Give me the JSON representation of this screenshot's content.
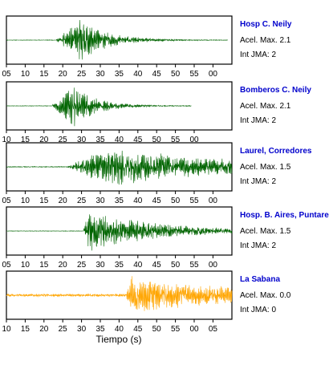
{
  "chart_data": {
    "type": "line",
    "xlabel": "Tiempo (s)",
    "panels": [
      {
        "station": "Hosp C. Neily",
        "accel": "Acel. Max. 2.1",
        "jma": "Int JMA: 2",
        "color": "#006400",
        "xticks": [
          "05",
          "10",
          "15",
          "20",
          "25",
          "30",
          "35",
          "40",
          "45",
          "50",
          "55",
          "00"
        ],
        "onset": 0.22,
        "peak": 0.33,
        "decay": 0.12,
        "amp": 0.95,
        "noise": 0.012,
        "end": 0.98,
        "seed": 11
      },
      {
        "station": "Bomberos C. Neily",
        "accel": "Acel. Max. 2.1",
        "jma": "Int JMA: 2",
        "color": "#006400",
        "xticks": [
          "10",
          "15",
          "20",
          "25",
          "30",
          "35",
          "40",
          "45",
          "50",
          "55",
          "00"
        ],
        "onset": 0.2,
        "peak": 0.3,
        "decay": 0.1,
        "amp": 0.95,
        "noise": 0.012,
        "end": 0.82,
        "seed": 23
      },
      {
        "station": "Laurel, Corredores",
        "accel": "Acel. Max. 1.5",
        "jma": "Int JMA: 2",
        "color": "#006400",
        "xticks": [
          "05",
          "10",
          "15",
          "20",
          "25",
          "30",
          "35",
          "40",
          "45",
          "50",
          "55",
          "00"
        ],
        "onset": 0.27,
        "peak": 0.45,
        "decay": 0.55,
        "amp": 0.9,
        "noise": 0.02,
        "end": 1.0,
        "seed": 37
      },
      {
        "station": "Hosp. B. Aires, Puntare",
        "accel": "Acel. Max. 1.5",
        "jma": "Int JMA: 2",
        "color": "#006400",
        "xticks": [
          "05",
          "10",
          "15",
          "20",
          "25",
          "30",
          "35",
          "40",
          "45",
          "50",
          "55",
          "00"
        ],
        "onset": 0.34,
        "peak": 0.36,
        "decay": 0.3,
        "amp": 0.95,
        "noise": 0.012,
        "end": 1.0,
        "seed": 41
      },
      {
        "station": "La Sabana",
        "accel": "Acel. Max. 0.0",
        "jma": "Int JMA: 0",
        "color": "#FFA500",
        "xticks": [
          "10",
          "15",
          "20",
          "25",
          "30",
          "35",
          "40",
          "45",
          "50",
          "55",
          "00",
          "05"
        ],
        "onset": 0.53,
        "peak": 0.55,
        "decay": 0.45,
        "amp": 0.9,
        "noise": 0.06,
        "end": 1.0,
        "seed": 59
      }
    ]
  }
}
